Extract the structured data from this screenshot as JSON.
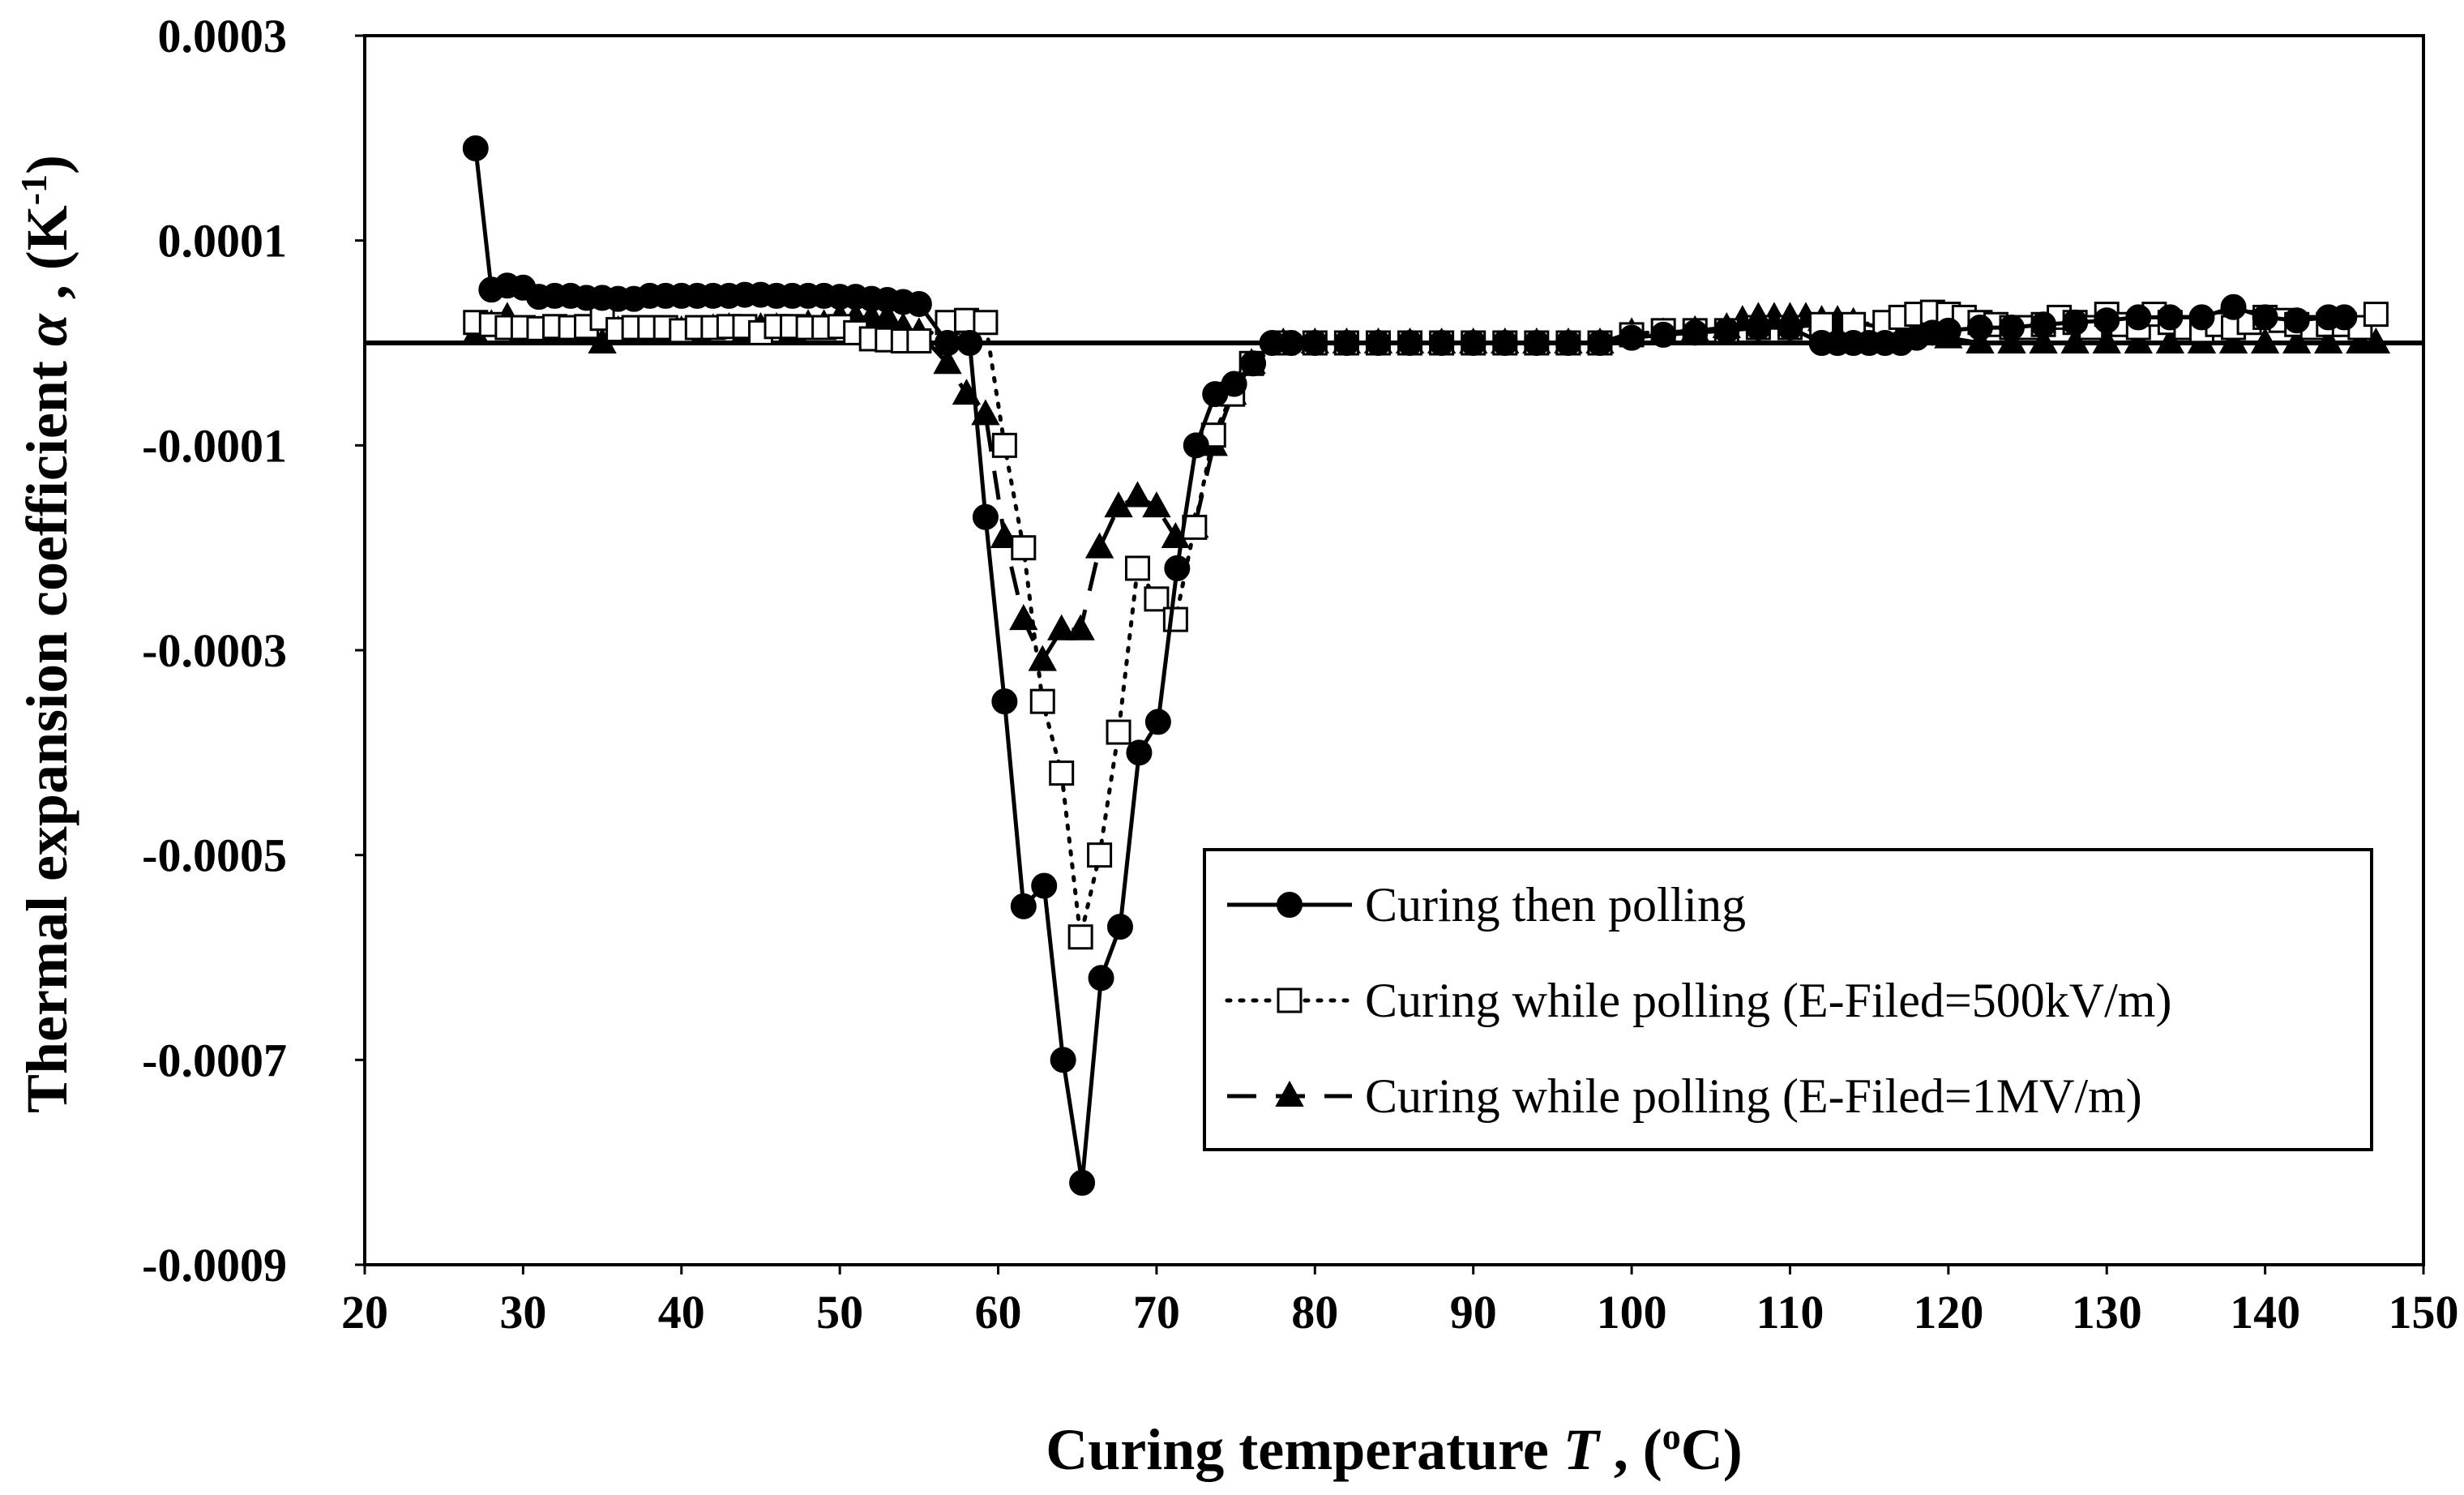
{
  "chart_data": {
    "type": "line",
    "title": "",
    "xlabel": {
      "main": "Curing temperature ",
      "symbol": "T",
      "sep": " , (",
      "sup": "o",
      "unit": "C)"
    },
    "ylabel": {
      "main": "Thermal expansion coefficient ",
      "symbol": "α",
      "sep": " , (K",
      "sup": "-1",
      "close": ")"
    },
    "xlim": [
      20,
      150
    ],
    "ylim": [
      -0.0009,
      0.0003
    ],
    "xticks": [
      20,
      30,
      40,
      50,
      60,
      70,
      80,
      90,
      100,
      110,
      120,
      130,
      140,
      150
    ],
    "xtick_labels": [
      "20",
      "30",
      "40",
      "50",
      "60",
      "70",
      "80",
      "90",
      "100",
      "110",
      "120",
      "130",
      "140",
      "150"
    ],
    "yticks": [
      0.0003,
      0.0001,
      -0.0001,
      -0.0003,
      -0.0005,
      -0.0007,
      -0.0009
    ],
    "ytick_labels": [
      "0.0003",
      "0.0001",
      "-0.0001",
      "-0.0003",
      "-0.0005",
      "-0.0007",
      "-0.0009"
    ],
    "zero_line": 0,
    "legend_position": "lower-right",
    "series": [
      {
        "name": "Curing then polling",
        "style": "solid",
        "marker": "filled-circle",
        "color": "#000000",
        "x": [
          27,
          28,
          29,
          30,
          31,
          32,
          33,
          34,
          35,
          36,
          37,
          38,
          39,
          40,
          41,
          42,
          43,
          44,
          45,
          46,
          47,
          48,
          49,
          50,
          51,
          52,
          53,
          54,
          55,
          56.8,
          58.2,
          59.2,
          60.4,
          61.6,
          62.9,
          64.1,
          65.3,
          66.5,
          67.7,
          68.9,
          70.1,
          71.3,
          72.5,
          73.7,
          74.9,
          76.1,
          77.3,
          78.5,
          80,
          82,
          84,
          86,
          88,
          90,
          92,
          94,
          96,
          98,
          100,
          102,
          104,
          106,
          108,
          110,
          112,
          113,
          114,
          115,
          116,
          117,
          118,
          119,
          120,
          122,
          124,
          126,
          128,
          130,
          132,
          134,
          136,
          138,
          140,
          142,
          144,
          145
        ],
        "y": [
          0.00019,
          5.2e-05,
          5.6e-05,
          5.4e-05,
          4.5e-05,
          4.6e-05,
          4.6e-05,
          4.4e-05,
          4.4e-05,
          4.3e-05,
          4.3e-05,
          4.6e-05,
          4.6e-05,
          4.6e-05,
          4.6e-05,
          4.6e-05,
          4.6e-05,
          4.7e-05,
          4.7e-05,
          4.6e-05,
          4.6e-05,
          4.6e-05,
          4.6e-05,
          4.5e-05,
          4.5e-05,
          4.3e-05,
          4.2e-05,
          4e-05,
          3.8e-05,
          0.0,
          -0.0,
          -0.00017,
          -0.00035,
          -0.00055,
          -0.00053,
          -0.0007,
          -0.00082,
          -0.00062,
          -0.00057,
          -0.0004,
          -0.00037,
          -0.00022,
          -0.0001,
          -5e-05,
          -4e-05,
          -2e-05,
          -0.0,
          0.0,
          0.0,
          0.0,
          0.0,
          0.0,
          0.0,
          0.0,
          0.0,
          0.0,
          0.0,
          0.0,
          5e-06,
          8e-06,
          1e-05,
          1.2e-05,
          1.5e-05,
          1.5e-05,
          0.0,
          0.0,
          0.0,
          0.0,
          0.0,
          0.0,
          5e-06,
          1e-05,
          1.2e-05,
          1.5e-05,
          1.5e-05,
          1.8e-05,
          2e-05,
          2.2e-05,
          2.5e-05,
          2.5e-05,
          2.5e-05,
          3.5e-05,
          2.5e-05,
          2.2e-05,
          2.5e-05,
          2.5e-05
        ]
      },
      {
        "name": "Curing while polling (E-Filed=500kV/m)",
        "style": "dotted",
        "marker": "open-square",
        "color": "#000000",
        "x": [
          27,
          28,
          29,
          30,
          31,
          32,
          33,
          34,
          35,
          36,
          37,
          38,
          39,
          40,
          41,
          42,
          43,
          44,
          45,
          46,
          47,
          48,
          49,
          50,
          51,
          52,
          53,
          54,
          55,
          56.8,
          58,
          59.2,
          60.4,
          61.6,
          62.8,
          64,
          65.2,
          66.4,
          67.6,
          68.8,
          70,
          71.2,
          72.4,
          73.6,
          74.8,
          76,
          78,
          80,
          82,
          84,
          86,
          88,
          90,
          92,
          94,
          96,
          98,
          100,
          102,
          104,
          106,
          108,
          110,
          112,
          114,
          116,
          117,
          118,
          119,
          120,
          121,
          122,
          123,
          124,
          125,
          126,
          127,
          128,
          129,
          130,
          131,
          132,
          133,
          134,
          135,
          136,
          137,
          138,
          139,
          140,
          141,
          142,
          143,
          144,
          145,
          146,
          147
        ],
        "y": [
          2e-05,
          1.8e-05,
          1.5e-05,
          1.5e-05,
          1.4e-05,
          1.6e-05,
          1.5e-05,
          1.6e-05,
          2.4e-05,
          1.3e-05,
          1.5e-05,
          1.5e-05,
          1.5e-05,
          1.2e-05,
          1.5e-05,
          1.5e-05,
          1.6e-05,
          1.6e-05,
          1e-05,
          1.6e-05,
          1.6e-05,
          1.5e-05,
          1.5e-05,
          1.6e-05,
          1e-05,
          4e-06,
          3e-06,
          2e-06,
          2e-06,
          2e-05,
          2.2e-05,
          2e-05,
          -0.0001,
          -0.0002,
          -0.00035,
          -0.00042,
          -0.00058,
          -0.0005,
          -0.00038,
          -0.00022,
          -0.00025,
          -0.00027,
          -0.00018,
          -9e-05,
          -5e-05,
          -2e-05,
          0.0,
          0.0,
          0.0,
          0.0,
          0.0,
          0.0,
          0.0,
          0.0,
          0.0,
          0.0,
          0.0,
          8e-06,
          1.2e-05,
          1.2e-05,
          1.2e-05,
          1.5e-05,
          1.5e-05,
          1.8e-05,
          1.8e-05,
          2e-05,
          2.5e-05,
          2.8e-05,
          3e-05,
          2.8e-05,
          2.5e-05,
          2e-05,
          1.8e-05,
          1.5e-05,
          1.5e-05,
          1.8e-05,
          2.5e-05,
          2e-05,
          1.5e-05,
          2.8e-05,
          1.8e-05,
          1.5e-05,
          2.8e-05,
          2e-05,
          1.5e-05,
          1.2e-05,
          1.8e-05,
          1.5e-05,
          2e-05,
          2.5e-05,
          2.2e-05,
          1.8e-05,
          1.5e-05,
          1.8e-05,
          1.8e-05,
          1.5e-05,
          2.8e-05
        ]
      },
      {
        "name": "Curing while polling (E-Filed=1MV/m)",
        "style": "dashed",
        "marker": "filled-triangle",
        "color": "#000000",
        "x": [
          27,
          28,
          29,
          30,
          31,
          32,
          33,
          34,
          35,
          36,
          37,
          38,
          39,
          40,
          41,
          42,
          43,
          44,
          45,
          46,
          47,
          48,
          49,
          50,
          51,
          52,
          53,
          54,
          55,
          56.8,
          58,
          59.2,
          60.4,
          61.6,
          62.8,
          64,
          65.2,
          66.4,
          67.6,
          68.8,
          70,
          71.2,
          72.4,
          73.6,
          74.8,
          76,
          78,
          80,
          82,
          84,
          86,
          88,
          90,
          92,
          94,
          96,
          98,
          100,
          102,
          104,
          106,
          107,
          108,
          109,
          110,
          111,
          112,
          113,
          114,
          116,
          118,
          120,
          122,
          124,
          126,
          128,
          130,
          132,
          134,
          136,
          138,
          140,
          142,
          144,
          146,
          147
        ],
        "y": [
          8e-06,
          1.8e-05,
          2.5e-05,
          1.2e-05,
          8e-06,
          8e-06,
          1e-05,
          8e-06,
          0.0,
          1.2e-05,
          8e-06,
          8e-06,
          1.2e-05,
          1.2e-05,
          1.2e-05,
          1.4e-05,
          1.5e-05,
          1e-05,
          1.5e-05,
          1.5e-05,
          1.2e-05,
          1.8e-05,
          1.8e-05,
          2.5e-05,
          2.5e-05,
          2.5e-05,
          2.5e-05,
          1.5e-05,
          1e-05,
          -2e-05,
          -5e-05,
          -7e-05,
          -0.00019,
          -0.00027,
          -0.00031,
          -0.00028,
          -0.00028,
          -0.0002,
          -0.00016,
          -0.00015,
          -0.00016,
          -0.00019,
          -0.00018,
          -0.0001,
          -5e-05,
          -2e-05,
          0.0,
          0.0,
          0.0,
          0.0,
          0.0,
          0.0,
          0.0,
          0.0,
          0.0,
          0.0,
          0.0,
          1e-05,
          1e-05,
          1.2e-05,
          1.5e-05,
          2.2e-05,
          2.5e-05,
          2.5e-05,
          2.5e-05,
          2.5e-05,
          2.2e-05,
          2.2e-05,
          2e-05,
          1.5e-05,
          1e-05,
          5e-06,
          0.0,
          0.0,
          0.0,
          0.0,
          0.0,
          0.0,
          0.0,
          0.0,
          0.0,
          0.0,
          0.0,
          0.0,
          0.0,
          0.0
        ]
      }
    ]
  }
}
